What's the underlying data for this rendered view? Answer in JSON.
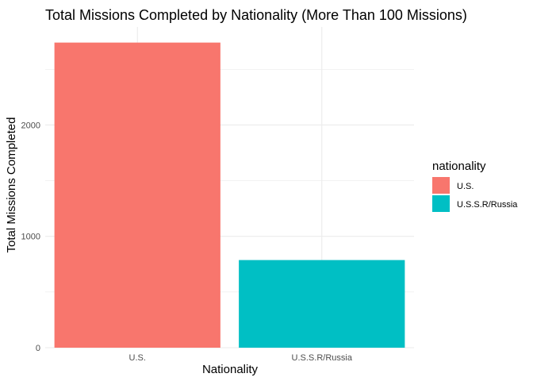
{
  "chart_data": {
    "type": "bar",
    "title": "Total Missions Completed by Nationality (More Than 100 Missions)",
    "xlabel": "Nationality",
    "ylabel": "Total Missions Completed",
    "categories": [
      "U.S.",
      "U.S.S.R/Russia"
    ],
    "values": [
      2740,
      787
    ],
    "colors": [
      "#F8766D",
      "#00BFC4"
    ],
    "ylim": [
      0,
      2880
    ],
    "y_ticks": [
      0,
      1000,
      2000
    ],
    "y_tick_labels": [
      "0",
      "1000",
      "2000"
    ],
    "y_minor_ticks": [
      500,
      1500,
      2500
    ],
    "grid": true,
    "legend": {
      "title": "nationality",
      "placement": "right",
      "items": [
        {
          "label": "U.S.",
          "color": "#F8766D"
        },
        {
          "label": "U.S.S.R/Russia",
          "color": "#00BFC4"
        }
      ]
    }
  }
}
